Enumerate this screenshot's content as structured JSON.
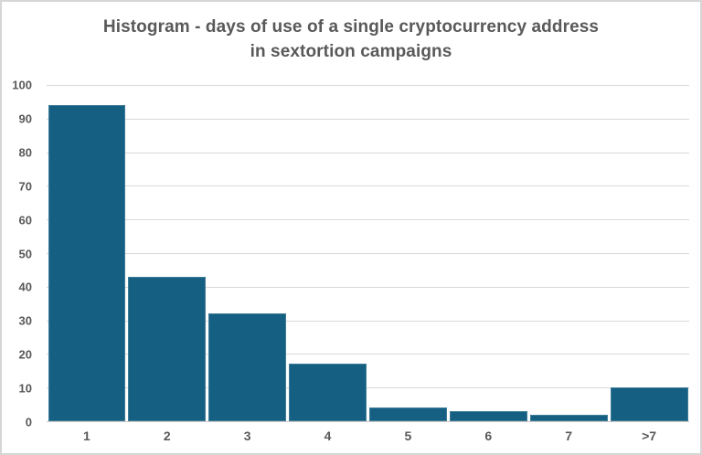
{
  "chart_data": {
    "type": "bar",
    "title": "Histogram - days of use of a single cryptocurrency address in sextortion campaigns",
    "title_lines": [
      "Histogram - days of use of a single cryptocurrency address",
      "in sextortion campaigns"
    ],
    "categories": [
      "1",
      "2",
      "3",
      "4",
      "5",
      "6",
      "7",
      ">7"
    ],
    "values": [
      94,
      43,
      32,
      17,
      4,
      3,
      2,
      10
    ],
    "xlabel": "",
    "ylabel": "",
    "ylim": [
      0,
      100
    ],
    "yticks": [
      0,
      10,
      20,
      30,
      40,
      50,
      60,
      70,
      80,
      90,
      100
    ],
    "grid": true,
    "legend": false,
    "colors": {
      "bar": "#156082",
      "gridline": "#d9d9d9",
      "axis_line": "#c6c6c6",
      "tick_label": "#595959",
      "title": "#595959",
      "background": "#ffffff",
      "border": "#d6d6d6"
    }
  }
}
